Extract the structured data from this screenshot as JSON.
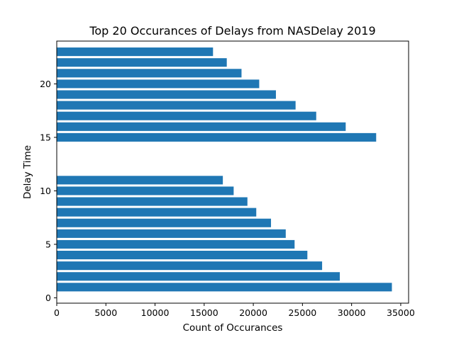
{
  "chart_data": {
    "type": "bar",
    "orientation": "horizontal",
    "title": "Top 20 Occurances of Delays from NASDelay 2019",
    "xlabel": "Count of Occurances",
    "ylabel": "Delay Time",
    "xlim": [
      0,
      35800
    ],
    "ylim": [
      -0.5,
      24
    ],
    "xticks": [
      0,
      5000,
      10000,
      15000,
      20000,
      25000,
      30000,
      35000
    ],
    "xtick_labels": [
      "0",
      "5000",
      "10000",
      "15000",
      "20000",
      "25000",
      "30000",
      "35000"
    ],
    "yticks": [
      0,
      5,
      10,
      15,
      20
    ],
    "ytick_labels": [
      "0",
      "5",
      "10",
      "15",
      "20"
    ],
    "grid": false,
    "color": "#1f77b4",
    "bars": [
      {
        "y": 1,
        "value": 34100
      },
      {
        "y": 2,
        "value": 28800
      },
      {
        "y": 3,
        "value": 27000
      },
      {
        "y": 4,
        "value": 25500
      },
      {
        "y": 5,
        "value": 24200
      },
      {
        "y": 6,
        "value": 23300
      },
      {
        "y": 7,
        "value": 21800
      },
      {
        "y": 8,
        "value": 20300
      },
      {
        "y": 9,
        "value": 19400
      },
      {
        "y": 10,
        "value": 18000
      },
      {
        "y": 11,
        "value": 16900
      },
      {
        "y": 15,
        "value": 32500
      },
      {
        "y": 16,
        "value": 29400
      },
      {
        "y": 17,
        "value": 26400
      },
      {
        "y": 18,
        "value": 24300
      },
      {
        "y": 19,
        "value": 22300
      },
      {
        "y": 20,
        "value": 20600
      },
      {
        "y": 21,
        "value": 18800
      },
      {
        "y": 22,
        "value": 17300
      },
      {
        "y": 23,
        "value": 15900
      }
    ]
  }
}
